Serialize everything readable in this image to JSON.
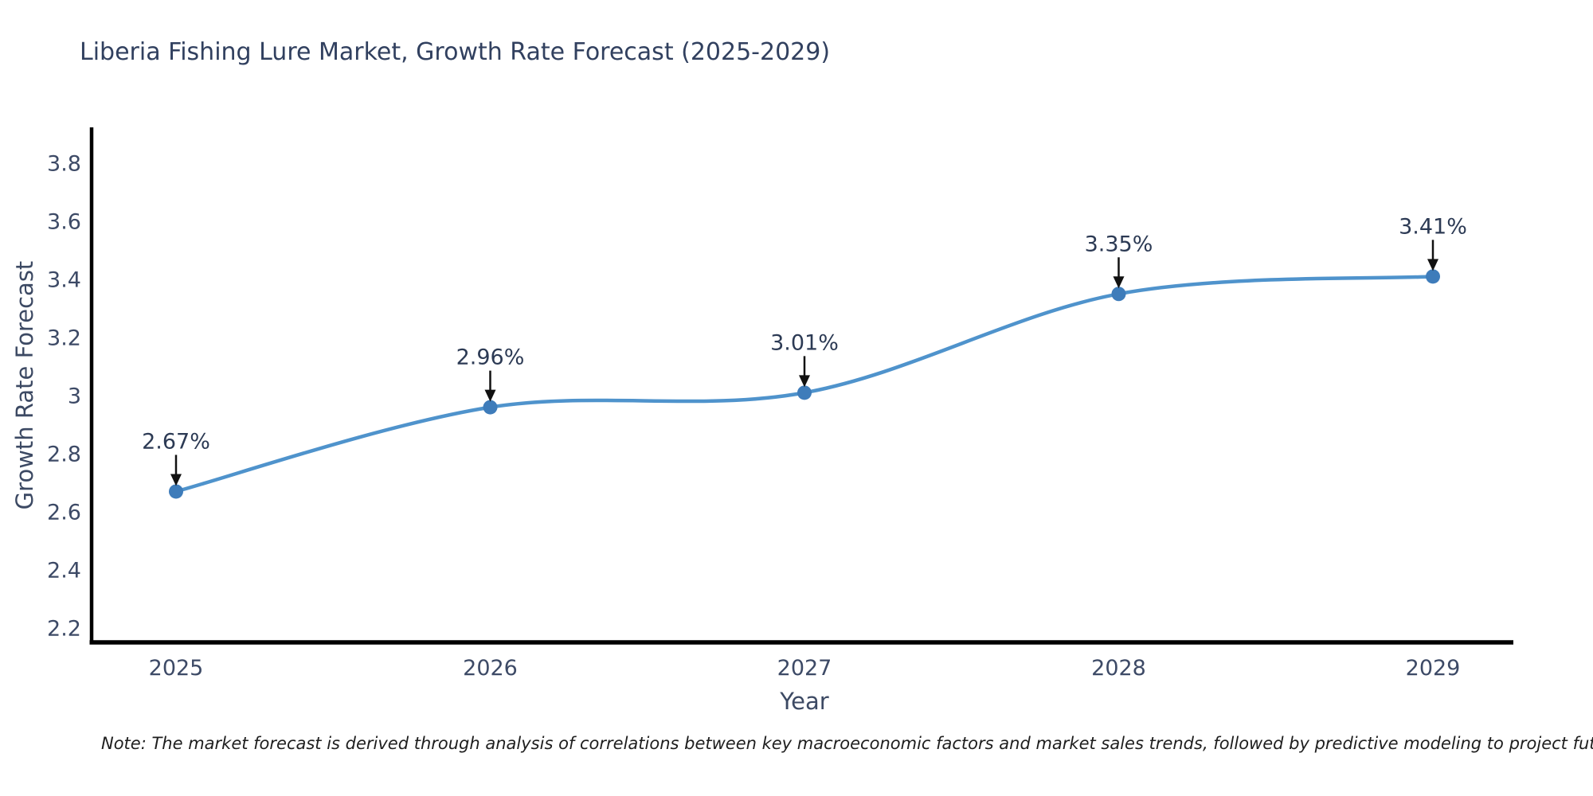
{
  "title": "Liberia Fishing Lure Market, Growth Rate Forecast (2025-2029)",
  "note": "Note: The market forecast is derived through analysis of correlations between key macroeconomic factors and market sales trends, followed by predictive modeling to project future sales",
  "chart_data": {
    "type": "line",
    "title": "Liberia Fishing Lure Market, Growth Rate Forecast (2025-2029)",
    "xlabel": "Year",
    "ylabel": "Growth Rate Forecast",
    "x": [
      2025,
      2026,
      2027,
      2028,
      2029
    ],
    "values": [
      2.67,
      2.96,
      3.01,
      3.35,
      3.41
    ],
    "point_labels": [
      "2.67%",
      "2.96%",
      "3.01%",
      "3.35%",
      "3.41%"
    ],
    "xticks": [
      "2025",
      "2026",
      "2027",
      "2028",
      "2029"
    ],
    "yticks": [
      2.2,
      2.4,
      2.6,
      2.8,
      3,
      3.2,
      3.4,
      3.6,
      3.8
    ],
    "xlim": [
      2024.73,
      2029.26
    ],
    "ylim": [
      2.15,
      3.92
    ],
    "grid": false,
    "legend": false,
    "curve": "spline",
    "colors": {
      "line": "#4f93cc",
      "marker": "#3e7cba",
      "axis": "#000000",
      "tick_text": "#3d4a66",
      "annotation_text": "#2c3a54",
      "annotation_arrow": "#111111",
      "title_text": "#31405f",
      "background": "#ffffff"
    }
  }
}
